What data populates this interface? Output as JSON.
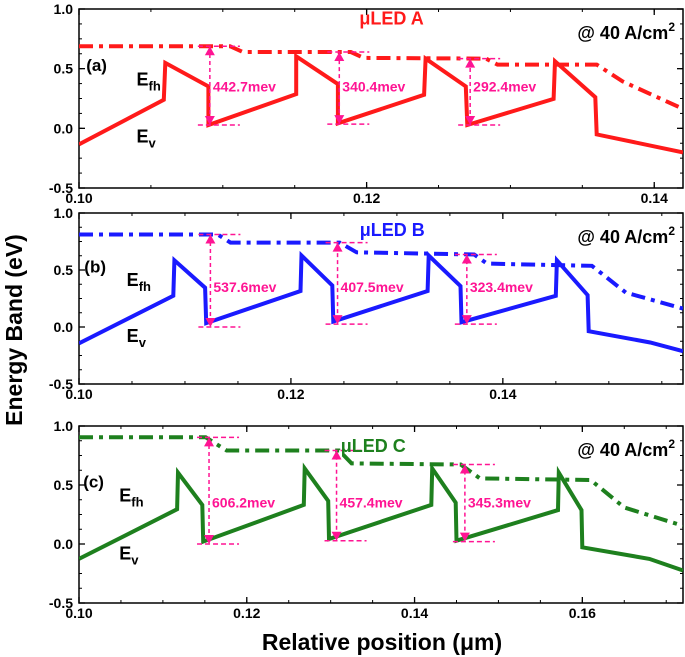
{
  "chart_data": {
    "type": "line",
    "ylabel": "Energy Band (eV)",
    "xlabel": "Relative position (μm)",
    "panels": [
      {
        "panel_label": "(a)",
        "title": "μLED A",
        "condition": "@ 40 A/cm",
        "condition_sup": "2",
        "color": "#ff1a1a",
        "xlim": [
          0.1,
          0.142
        ],
        "ylim": [
          -0.5,
          1.0
        ],
        "xticks": [
          "0.10",
          "0.12",
          "0.14"
        ],
        "yticks": [
          "-0.5",
          "0.0",
          "0.5",
          "1.0"
        ],
        "series": [
          {
            "name": "E_v",
            "label_main": "E",
            "label_sub": "v",
            "style": "solid",
            "x": [
              0.1,
              0.1059,
              0.106,
              0.109,
              0.109,
              0.1151,
              0.1151,
              0.118,
              0.118,
              0.124,
              0.1241,
              0.1269,
              0.127,
              0.133,
              0.1331,
              0.1359,
              0.136,
              0.142
            ],
            "y": [
              -0.135,
              0.239,
              0.548,
              0.351,
              0.028,
              0.287,
              0.604,
              0.371,
              0.042,
              0.281,
              0.584,
              0.351,
              0.028,
              0.247,
              0.562,
              0.261,
              -0.051,
              -0.202
            ]
          },
          {
            "name": "E_fh",
            "label_main": "E",
            "label_sub": "fh",
            "style": "dashdot",
            "x": [
              0.1,
              0.1105,
              0.1114,
              0.1189,
              0.1198,
              0.1283,
              0.1291,
              0.136,
              0.1378,
              0.142
            ],
            "y": [
              0.688,
              0.688,
              0.64,
              0.64,
              0.59,
              0.584,
              0.534,
              0.534,
              0.393,
              0.163
            ]
          }
        ],
        "annotations": [
          {
            "x": 0.1091,
            "y_low": 0.028,
            "y_high": 0.688,
            "text": "442.7mev"
          },
          {
            "x": 0.1181,
            "y_low": 0.035,
            "y_high": 0.64,
            "text": "340.4mev"
          },
          {
            "x": 0.1272,
            "y_low": 0.028,
            "y_high": 0.584,
            "text": "292.4mev"
          }
        ]
      },
      {
        "panel_label": "(b)",
        "title": "μLED B",
        "condition": "@ 40 A/cm",
        "condition_sup": "2",
        "color": "#1a1aff",
        "xlim": [
          0.1,
          0.157
        ],
        "ylim": [
          -0.5,
          1.0
        ],
        "xticks": [
          "0.10",
          "0.12",
          "0.14"
        ],
        "yticks": [
          "-0.5",
          "0.0",
          "0.5",
          "1.0"
        ],
        "series": [
          {
            "name": "E_v",
            "label_main": "E",
            "label_sub": "v",
            "style": "solid",
            "x": [
              0.1,
              0.1089,
              0.109,
              0.1119,
              0.112,
              0.1209,
              0.121,
              0.1239,
              0.124,
              0.1329,
              0.133,
              0.136,
              0.1361,
              0.145,
              0.1451,
              0.148,
              0.1481,
              0.1539,
              0.157
            ],
            "y": [
              -0.144,
              0.274,
              0.585,
              0.345,
              0.034,
              0.316,
              0.627,
              0.364,
              0.048,
              0.316,
              0.627,
              0.359,
              0.042,
              0.274,
              0.585,
              0.28,
              -0.037,
              -0.136,
              -0.212
            ]
          },
          {
            "name": "E_fh",
            "label_main": "E",
            "label_sub": "fh",
            "style": "dashdot",
            "x": [
              0.1,
              0.1131,
              0.1143,
              0.1246,
              0.1262,
              0.1373,
              0.1385,
              0.1484,
              0.1516,
              0.157
            ],
            "y": [
              0.811,
              0.811,
              0.74,
              0.74,
              0.655,
              0.636,
              0.556,
              0.537,
              0.302,
              0.161
            ]
          }
        ],
        "annotations": [
          {
            "x": 0.1124,
            "y_low": 0.0,
            "y_high": 0.811,
            "text": "537.6mev"
          },
          {
            "x": 0.1244,
            "y_low": 0.025,
            "y_high": 0.74,
            "text": "407.5mev"
          },
          {
            "x": 0.1366,
            "y_low": 0.025,
            "y_high": 0.636,
            "text": "323.4mev"
          }
        ]
      },
      {
        "panel_label": "(c)",
        "title": "μLED C",
        "condition": "@ 40 A/cm",
        "condition_sup": "2",
        "color": "#1e801e",
        "xlim": [
          0.1,
          0.172
        ],
        "ylim": [
          -0.5,
          1.0
        ],
        "xticks": [
          "0.10",
          "0.12",
          "0.14",
          "0.16"
        ],
        "yticks": [
          "-0.5",
          "0.0",
          "0.5",
          "1.0"
        ],
        "series": [
          {
            "name": "E_v",
            "label_main": "E",
            "label_sub": "v",
            "style": "solid",
            "x": [
              0.1,
              0.1117,
              0.1118,
              0.1147,
              0.1148,
              0.1268,
              0.1269,
              0.1297,
              0.1298,
              0.142,
              0.1421,
              0.1449,
              0.145,
              0.1571,
              0.1572,
              0.1599,
              0.16,
              0.168,
              0.172
            ],
            "y": [
              -0.126,
              0.295,
              0.604,
              0.331,
              0.02,
              0.331,
              0.64,
              0.365,
              0.042,
              0.331,
              0.64,
              0.351,
              0.028,
              0.287,
              0.604,
              0.287,
              -0.028,
              -0.126,
              -0.225
            ]
          },
          {
            "name": "E_fh",
            "label_main": "E",
            "label_sub": "fh",
            "style": "dashdot",
            "x": [
              0.1,
              0.1151,
              0.1176,
              0.131,
              0.1325,
              0.1455,
              0.1478,
              0.161,
              0.165,
              0.172
            ],
            "y": [
              0.904,
              0.904,
              0.792,
              0.792,
              0.683,
              0.674,
              0.556,
              0.542,
              0.309,
              0.154
            ]
          }
        ],
        "annotations": [
          {
            "x": 0.1155,
            "y_low": 0.0,
            "y_high": 0.904,
            "text": "606.2mev"
          },
          {
            "x": 0.1307,
            "y_low": 0.028,
            "y_high": 0.792,
            "text": "457.4mev"
          },
          {
            "x": 0.146,
            "y_low": 0.02,
            "y_high": 0.674,
            "text": "345.3mev"
          }
        ]
      }
    ],
    "annotation_color": "#ff1493",
    "grid": false
  }
}
